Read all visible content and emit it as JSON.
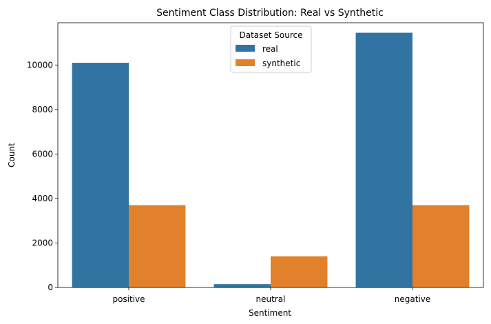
{
  "chart_data": {
    "type": "bar",
    "title": "Sentiment Class Distribution: Real vs Synthetic",
    "xlabel": "Sentiment",
    "ylabel": "Count",
    "categories": [
      "positive",
      "neutral",
      "negative"
    ],
    "series": [
      {
        "name": "real",
        "color": "#3274a1",
        "values": [
          10100,
          150,
          11450
        ]
      },
      {
        "name": "synthetic",
        "color": "#e1812c",
        "values": [
          3700,
          1400,
          3700
        ]
      }
    ],
    "ylim": [
      0,
      11900
    ],
    "yticks": [
      0,
      2000,
      4000,
      6000,
      8000,
      10000
    ],
    "grid": false,
    "legend": {
      "title": "Dataset Source",
      "placement": "top-center"
    }
  }
}
